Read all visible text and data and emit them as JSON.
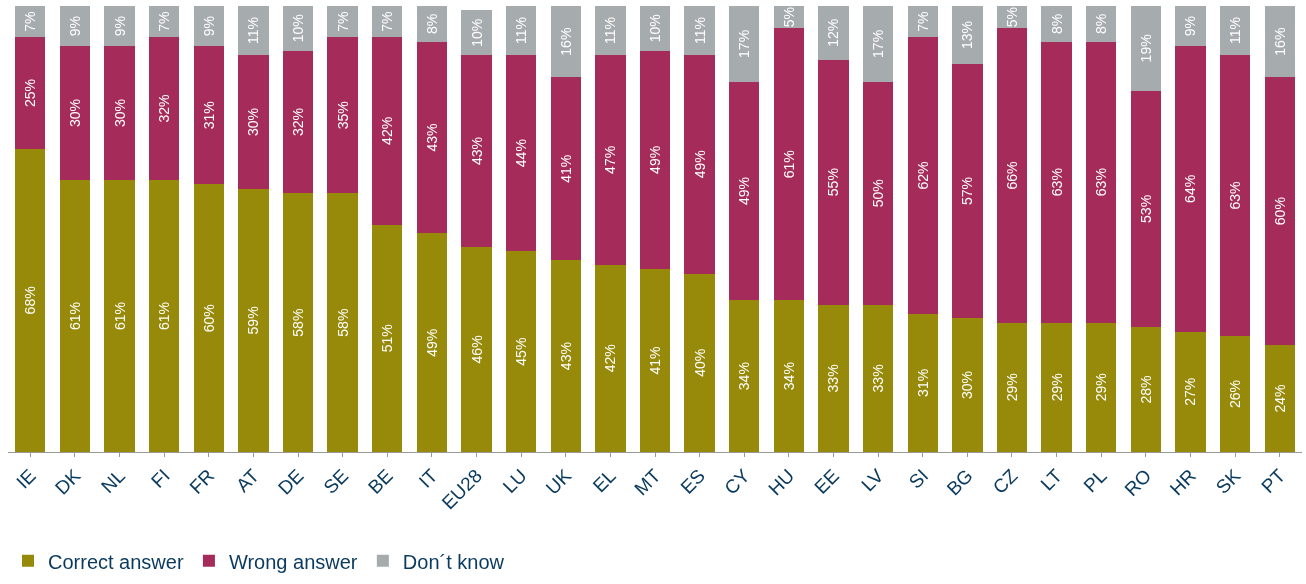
{
  "chart_data": {
    "type": "bar",
    "stacked": true,
    "legend": "bottom left",
    "categories": [
      "IE",
      "DK",
      "NL",
      "FI",
      "FR",
      "AT",
      "DE",
      "SE",
      "BE",
      "IT",
      "EU28",
      "LU",
      "UK",
      "EL",
      "MT",
      "ES",
      "CY",
      "HU",
      "EE",
      "LV",
      "SI",
      "BG",
      "CZ",
      "LT",
      "PL",
      "RO",
      "HR",
      "SK",
      "PT"
    ],
    "series": [
      {
        "name": "Correct answer",
        "color": "#978a0a",
        "values": [
          68,
          61,
          61,
          61,
          60,
          59,
          58,
          58,
          51,
          49,
          46,
          45,
          43,
          42,
          41,
          40,
          34,
          34,
          33,
          33,
          31,
          30,
          29,
          29,
          29,
          28,
          27,
          26,
          24
        ],
        "value_labels": [
          "68%",
          "61%",
          "61%",
          "61%",
          "60%",
          "59%",
          "58%",
          "58%",
          "51%",
          "49%",
          "46%",
          "45%",
          "43%",
          "42%",
          "41%",
          "40%",
          "34%",
          "34%",
          "33%",
          "33%",
          "31%",
          "30%",
          "29%",
          "29%",
          "29%",
          "28%",
          "27%",
          "26%",
          "24%"
        ]
      },
      {
        "name": "Wrong answer",
        "color": "#a52c5a",
        "values": [
          25,
          30,
          30,
          32,
          31,
          30,
          32,
          35,
          42,
          43,
          43,
          44,
          41,
          47,
          49,
          49,
          49,
          61,
          55,
          50,
          62,
          57,
          66,
          63,
          63,
          53,
          64,
          63,
          60
        ],
        "value_labels": [
          "25%",
          "30%",
          "30%",
          "32%",
          "31%",
          "30%",
          "32%",
          "35%",
          "42%",
          "43%",
          "43%",
          "44%",
          "41%",
          "47%",
          "49%",
          "49%",
          "49%",
          "61%",
          "55%",
          "50%",
          "62%",
          "57%",
          "66%",
          "63%",
          "63%",
          "53%",
          "64%",
          "63%",
          "60%"
        ]
      },
      {
        "name": "Don´t know",
        "color": "#a6abad",
        "values": [
          7,
          9,
          9,
          7,
          9,
          11,
          10,
          7,
          7,
          8,
          10,
          11,
          16,
          11,
          10,
          11,
          17,
          5,
          12,
          17,
          7,
          13,
          5,
          8,
          8,
          19,
          9,
          11,
          16
        ],
        "value_labels": [
          "7%",
          "9%",
          "9%",
          "7%",
          "9%",
          "11%",
          "10%",
          "7%",
          "7%",
          "8%",
          "10%",
          "11%",
          "16%",
          "11%",
          "10%",
          "11%",
          "17%",
          "5%",
          "12%",
          "17%",
          "7%",
          "13%",
          "5%",
          "8%",
          "8%",
          "19%",
          "9%",
          "11%",
          "16%"
        ]
      }
    ]
  }
}
